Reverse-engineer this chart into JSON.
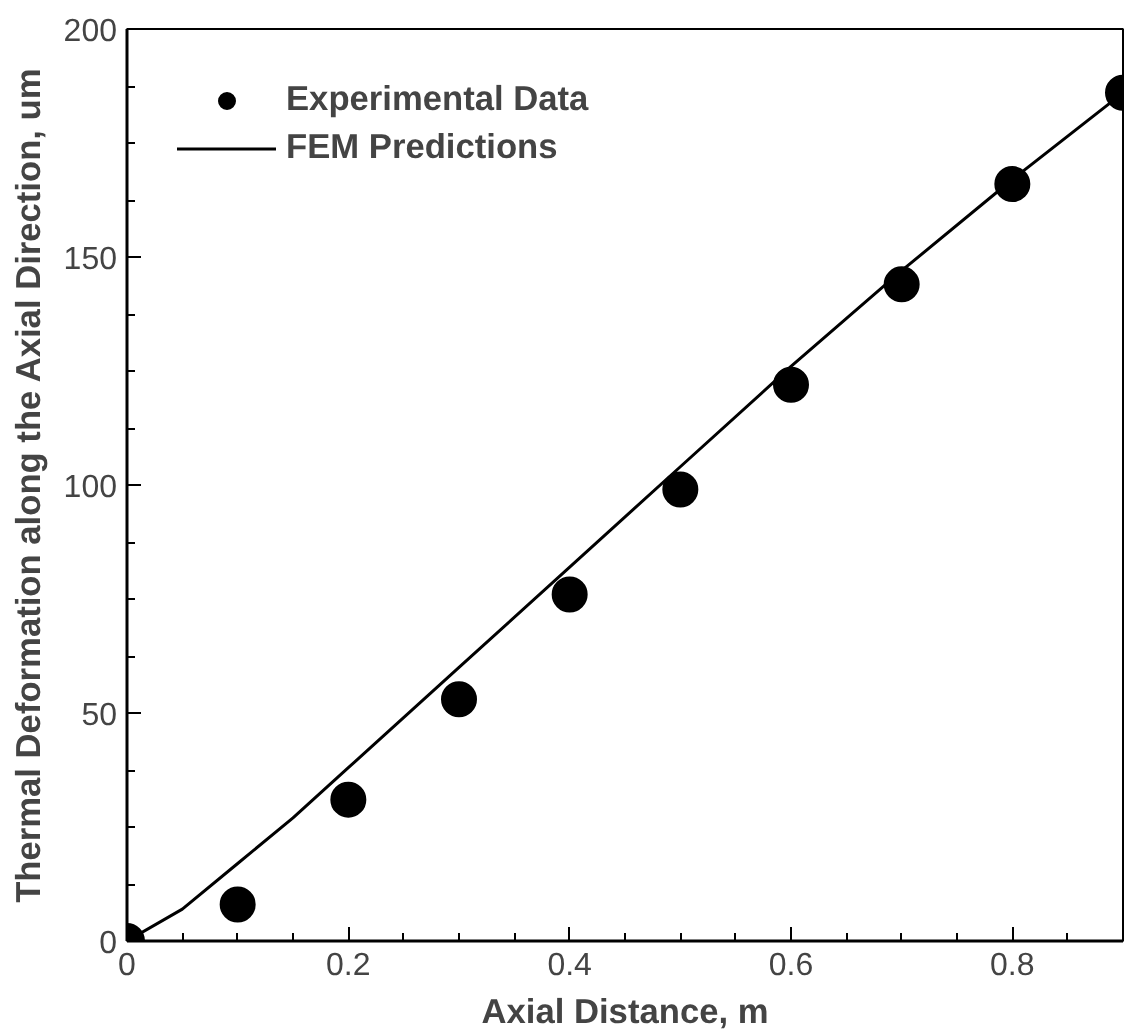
{
  "chart_data": {
    "type": "scatter",
    "xlabel": "Axial Distance, m",
    "ylabel": "Thermal Deformation along the Axial Direction, um",
    "xlim": [
      0,
      0.9
    ],
    "ylim": [
      0,
      200
    ],
    "xticks": [
      0,
      0.2,
      0.4,
      0.6,
      0.8
    ],
    "yticks": [
      0,
      50,
      100,
      150,
      200
    ],
    "grid": false,
    "legend": "top left",
    "series": [
      {
        "name": "Experimental Data",
        "marker": "circle",
        "color": "#000000",
        "x": [
          0,
          0.1,
          0.2,
          0.3,
          0.4,
          0.5,
          0.6,
          0.7,
          0.8,
          0.9
        ],
        "values": [
          0,
          8,
          31,
          53,
          76,
          99,
          122,
          144,
          166,
          186
        ]
      },
      {
        "name": "FEM Predictions",
        "type": "line",
        "color": "#000000",
        "line_style": "solid",
        "marker": "none",
        "x": [
          0,
          0.05,
          0.1,
          0.15,
          0.2,
          0.3,
          0.4,
          0.5,
          0.6,
          0.7,
          0.8,
          0.9
        ],
        "values": [
          0,
          7,
          17,
          27,
          38,
          60,
          82,
          104,
          126,
          147,
          167,
          186
        ]
      }
    ]
  }
}
